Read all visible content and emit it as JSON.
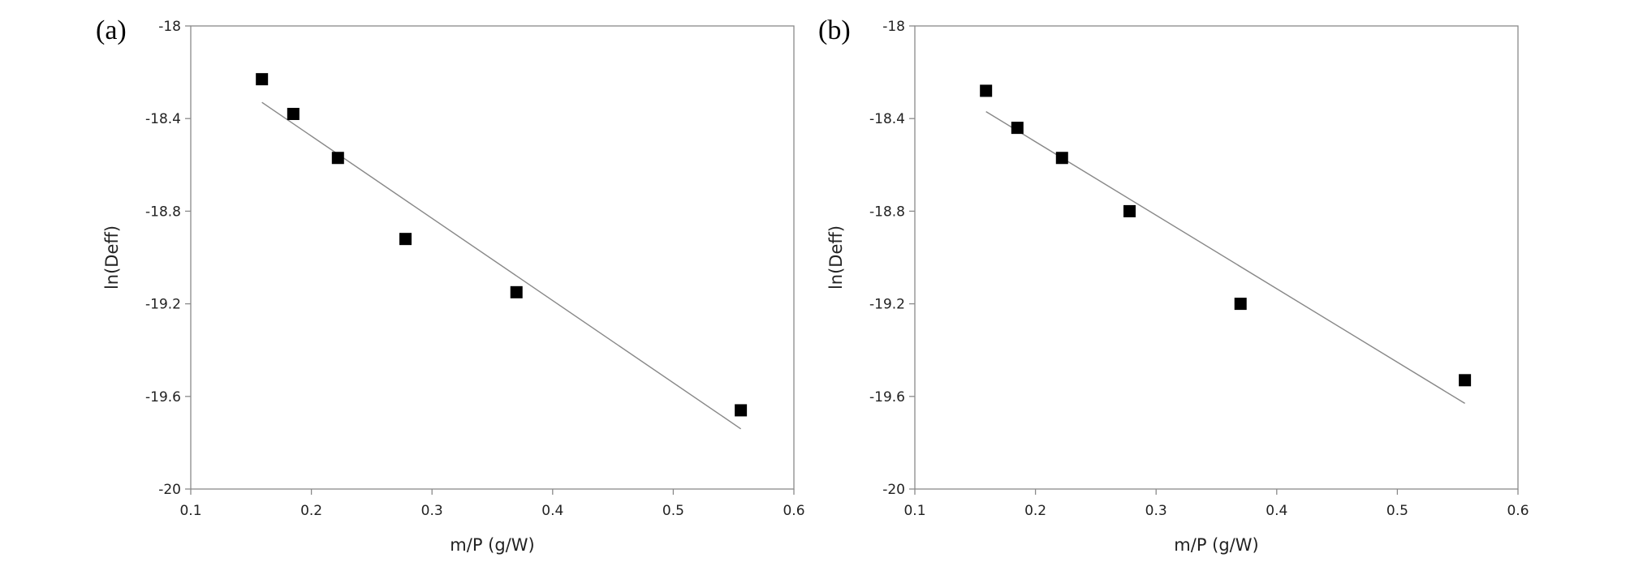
{
  "chart_data": [
    {
      "panel_label": "(a)",
      "type": "scatter",
      "xlabel": "m/P (g/W)",
      "ylabel": "ln(Deff)",
      "xlim": [
        0.1,
        0.6
      ],
      "ylim": [
        -20,
        -18
      ],
      "xticks": [
        "0.1",
        "0.2",
        "0.3",
        "0.4",
        "0.5",
        "0.6"
      ],
      "yticks": [
        "-18",
        "-18.4",
        "-18.8",
        "-19.2",
        "-19.6",
        "-20"
      ],
      "grid": false,
      "marker_color": "#000000",
      "trendline_color": "#888888",
      "points": [
        {
          "x": 0.159,
          "y": -18.23
        },
        {
          "x": 0.185,
          "y": -18.38
        },
        {
          "x": 0.222,
          "y": -18.57
        },
        {
          "x": 0.278,
          "y": -18.92
        },
        {
          "x": 0.37,
          "y": -19.15
        },
        {
          "x": 0.556,
          "y": -19.66
        }
      ],
      "trendline": [
        {
          "x": 0.159,
          "y": -18.33
        },
        {
          "x": 0.556,
          "y": -19.74
        }
      ]
    },
    {
      "panel_label": "(b)",
      "type": "scatter",
      "xlabel": "m/P (g/W)",
      "ylabel": "ln(Deff)",
      "xlim": [
        0.1,
        0.6
      ],
      "ylim": [
        -20,
        -18
      ],
      "xticks": [
        "0.1",
        "0.2",
        "0.3",
        "0.4",
        "0.5",
        "0.6"
      ],
      "yticks": [
        "-18",
        "-18.4",
        "-18.8",
        "-19.2",
        "-19.6",
        "-20"
      ],
      "grid": false,
      "marker_color": "#000000",
      "trendline_color": "#888888",
      "points": [
        {
          "x": 0.159,
          "y": -18.28
        },
        {
          "x": 0.185,
          "y": -18.44
        },
        {
          "x": 0.222,
          "y": -18.57
        },
        {
          "x": 0.278,
          "y": -18.8
        },
        {
          "x": 0.37,
          "y": -19.2
        },
        {
          "x": 0.556,
          "y": -19.53
        }
      ],
      "trendline": [
        {
          "x": 0.159,
          "y": -18.37
        },
        {
          "x": 0.556,
          "y": -19.63
        }
      ]
    }
  ]
}
